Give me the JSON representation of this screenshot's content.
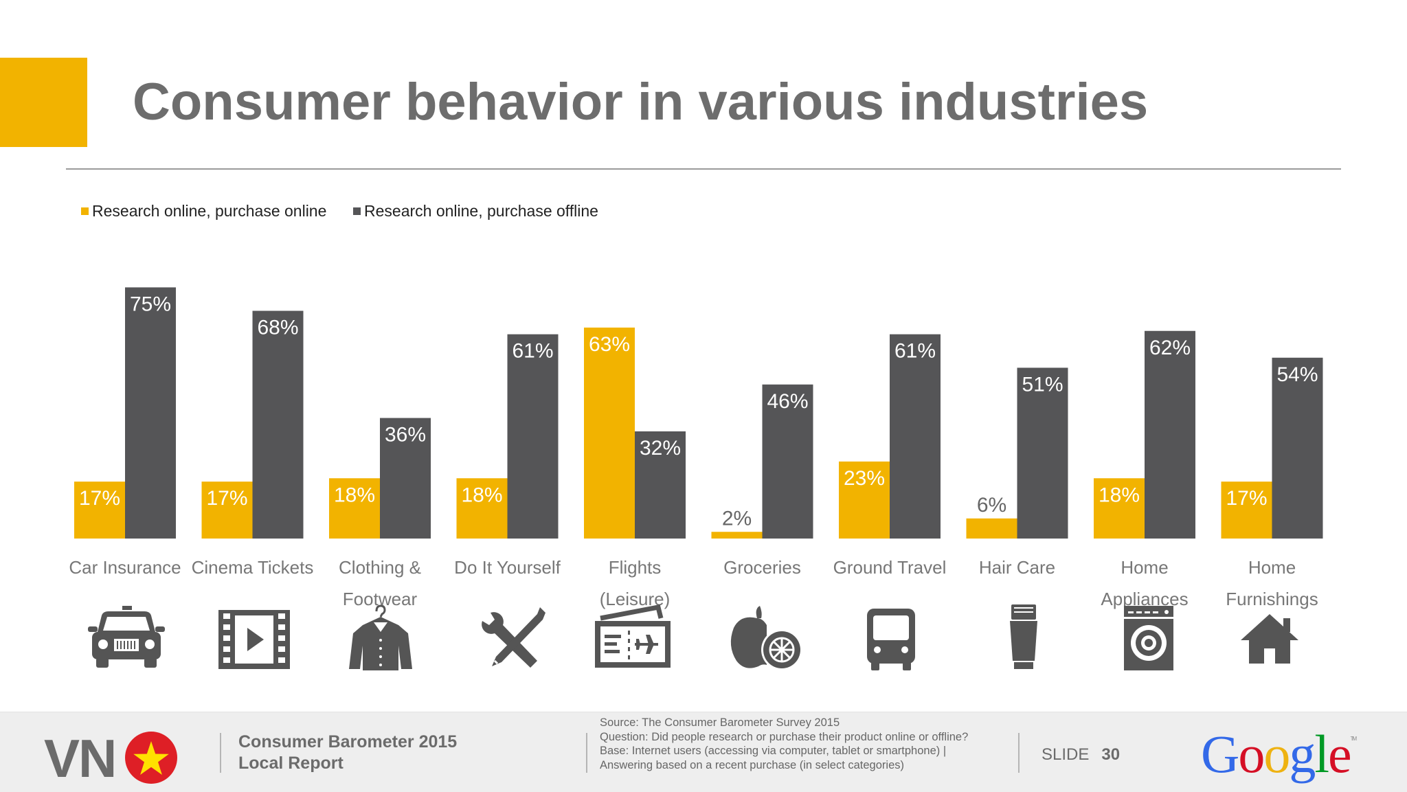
{
  "slide_title": "Consumer behavior in various industries",
  "legend": [
    {
      "label": "Research online, purchase online",
      "color": "#f2b300"
    },
    {
      "label": "Research online, purchase offline",
      "color": "#555557"
    }
  ],
  "chart_data": {
    "type": "bar",
    "title": "",
    "xlabel": "",
    "ylabel": "",
    "ylim": [
      0,
      80
    ],
    "grid": false,
    "legend_position": "top-left",
    "categories": [
      [
        "Car Insurance"
      ],
      [
        "Cinema Tickets"
      ],
      [
        "Clothing &",
        "Footwear"
      ],
      [
        "Do It Yourself"
      ],
      [
        "Flights",
        "(Leisure)"
      ],
      [
        "Groceries"
      ],
      [
        "Ground Travel"
      ],
      [
        "Hair Care"
      ],
      [
        "Home",
        "Appliances"
      ],
      [
        "Home",
        "Furnishings"
      ]
    ],
    "series": [
      {
        "name": "Research online, purchase online",
        "color": "#f2b300",
        "values": [
          17,
          17,
          18,
          18,
          63,
          2,
          23,
          6,
          18,
          17
        ]
      },
      {
        "name": "Research online, purchase offline",
        "color": "#555557",
        "values": [
          75,
          68,
          36,
          61,
          32,
          46,
          61,
          51,
          62,
          54
        ]
      }
    ],
    "value_suffix": "%"
  },
  "category_icons": [
    "car-icon",
    "film-icon",
    "clothing-icon",
    "tools-icon",
    "ticket-icon",
    "fruit-icon",
    "bus-icon",
    "hair-care-icon",
    "washing-machine-icon",
    "house-icon"
  ],
  "footer": {
    "country_code": "VN",
    "report_line1": "Consumer Barometer 2015",
    "report_line2": "Local Report",
    "notes": [
      "Source: The Consumer Barometer Survey 2015",
      "Question:  Did people research or purchase their product online or offline?",
      "Base: Internet users (accessing via computer, tablet or smartphone) |",
      "Answering based on a recent purchase (in select categories)"
    ],
    "slide_label": "SLIDE",
    "slide_number": "30",
    "logo_text": "Google",
    "logo_tm": "TM"
  }
}
